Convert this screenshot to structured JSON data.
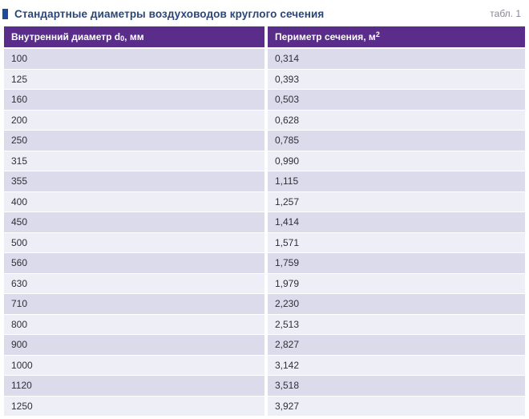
{
  "header": {
    "title": "Стандартные диаметры воздуховодов круглого сечения",
    "table_ref": "табл. 1"
  },
  "colors": {
    "header_bg": "#5b2d8a",
    "row_odd": "#dbdbeb",
    "row_even": "#eeeff6",
    "title_color": "#2a4679",
    "marker_color": "#1e4a9b",
    "caption_color": "#8a8499"
  },
  "table": {
    "columns": [
      {
        "label_pre": "Внутренний диаметр d",
        "label_sub": "0",
        "label_post": ", мм"
      },
      {
        "label_pre": "Периметр сечения, м",
        "label_sup": "2"
      }
    ],
    "rows": [
      [
        "100",
        "0,314"
      ],
      [
        "125",
        "0,393"
      ],
      [
        "160",
        "0,503"
      ],
      [
        "200",
        "0,628"
      ],
      [
        "250",
        "0,785"
      ],
      [
        "315",
        "0,990"
      ],
      [
        "355",
        "1,115"
      ],
      [
        "400",
        "1,257"
      ],
      [
        "450",
        "1,414"
      ],
      [
        "500",
        "1,571"
      ],
      [
        "560",
        "1,759"
      ],
      [
        "630",
        "1,979"
      ],
      [
        "710",
        "2,230"
      ],
      [
        "800",
        "2,513"
      ],
      [
        "900",
        "2,827"
      ],
      [
        "1000",
        "3,142"
      ],
      [
        "1120",
        "3,518"
      ],
      [
        "1250",
        "3,927"
      ]
    ]
  }
}
